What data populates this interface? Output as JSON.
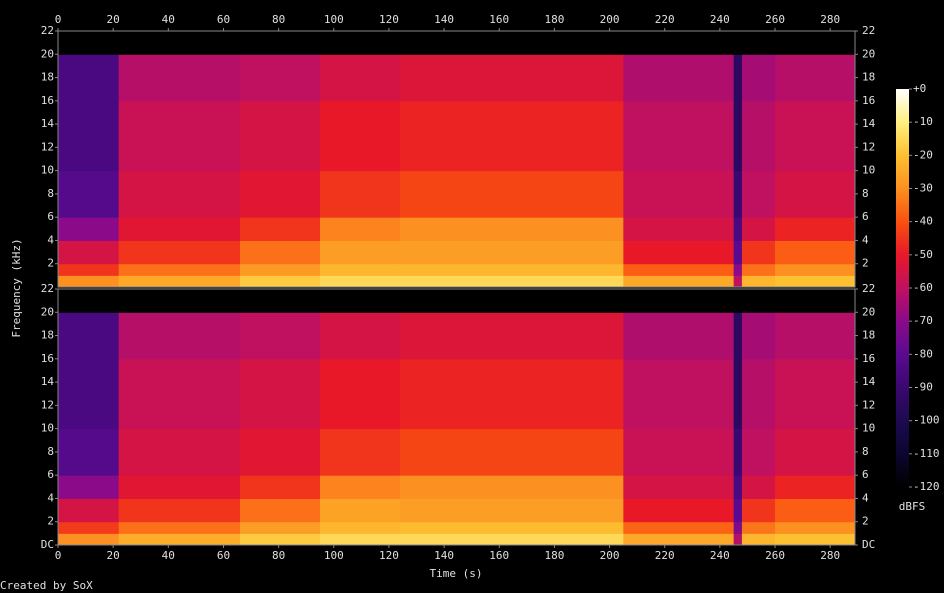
{
  "chart_data": {
    "type": "spectrogram",
    "x_label": "Time (s)",
    "y_label": "Frequency (kHz)",
    "credit": "Created by SoX",
    "xlim": [
      0,
      289
    ],
    "xticks": [
      0,
      20,
      40,
      60,
      80,
      100,
      120,
      140,
      160,
      180,
      200,
      220,
      240,
      260,
      280
    ],
    "time_edges": [
      0,
      22,
      66,
      95,
      124,
      205,
      245,
      248,
      260,
      289
    ],
    "freq_edges": [
      0,
      1,
      2,
      4,
      6,
      10,
      16,
      20,
      22
    ],
    "channels": [
      {
        "ylim": [
          0,
          22
        ],
        "yticks": [
          2,
          4,
          6,
          8,
          10,
          12,
          14,
          16,
          18,
          20,
          22
        ],
        "values": [
          [
            -30,
            -45,
            -55,
            -70,
            -82,
            -85,
            -85,
            -120
          ],
          [
            -25,
            -35,
            -45,
            -52,
            -55,
            -58,
            -62,
            -120
          ],
          [
            -18,
            -28,
            -35,
            -45,
            -52,
            -55,
            -60,
            -120
          ],
          [
            -15,
            -22,
            -27,
            -32,
            -45,
            -50,
            -55,
            -120
          ],
          [
            -15,
            -22,
            -27,
            -30,
            -42,
            -48,
            -53,
            -120
          ],
          [
            -25,
            -38,
            -50,
            -55,
            -58,
            -60,
            -63,
            -120
          ],
          [
            -60,
            -70,
            -80,
            -85,
            -90,
            -95,
            -95,
            -120
          ],
          [
            -22,
            -35,
            -45,
            -55,
            -60,
            -62,
            -65,
            -120
          ],
          [
            -20,
            -30,
            -38,
            -48,
            -55,
            -58,
            -62,
            -120
          ]
        ]
      },
      {
        "ylim": [
          0,
          22
        ],
        "yticks": [
          {
            "value": 0,
            "label": "DC"
          },
          2,
          4,
          6,
          8,
          10,
          12,
          14,
          16,
          18,
          20,
          22
        ],
        "values": [
          [
            -30,
            -44,
            -55,
            -70,
            -82,
            -85,
            -85,
            -120
          ],
          [
            -24,
            -35,
            -45,
            -52,
            -55,
            -58,
            -62,
            -120
          ],
          [
            -18,
            -27,
            -35,
            -45,
            -52,
            -55,
            -60,
            -120
          ],
          [
            -15,
            -22,
            -26,
            -32,
            -45,
            -50,
            -55,
            -120
          ],
          [
            -15,
            -21,
            -27,
            -30,
            -42,
            -48,
            -53,
            -120
          ],
          [
            -25,
            -37,
            -50,
            -55,
            -58,
            -60,
            -63,
            -120
          ],
          [
            -62,
            -72,
            -80,
            -85,
            -90,
            -95,
            -95,
            -120
          ],
          [
            -22,
            -34,
            -45,
            -55,
            -60,
            -62,
            -65,
            -120
          ],
          [
            -20,
            -30,
            -38,
            -48,
            -55,
            -58,
            -62,
            -120
          ]
        ]
      }
    ],
    "colorbar": {
      "label": "dBFS",
      "lim": [
        -120,
        0
      ],
      "ticks": [
        {
          "value": 0,
          "label": "+0"
        },
        -10,
        -20,
        -30,
        -40,
        -50,
        -60,
        -70,
        -80,
        -90,
        -100,
        -110,
        -120
      ],
      "colors": [
        "#000000",
        "#0c0630",
        "#1c0a50",
        "#3a0870",
        "#5a0a90",
        "#8a0a8a",
        "#c01060",
        "#e81828",
        "#fa5010",
        "#fc9020",
        "#fdc030",
        "#fef080",
        "#ffffff"
      ]
    }
  }
}
